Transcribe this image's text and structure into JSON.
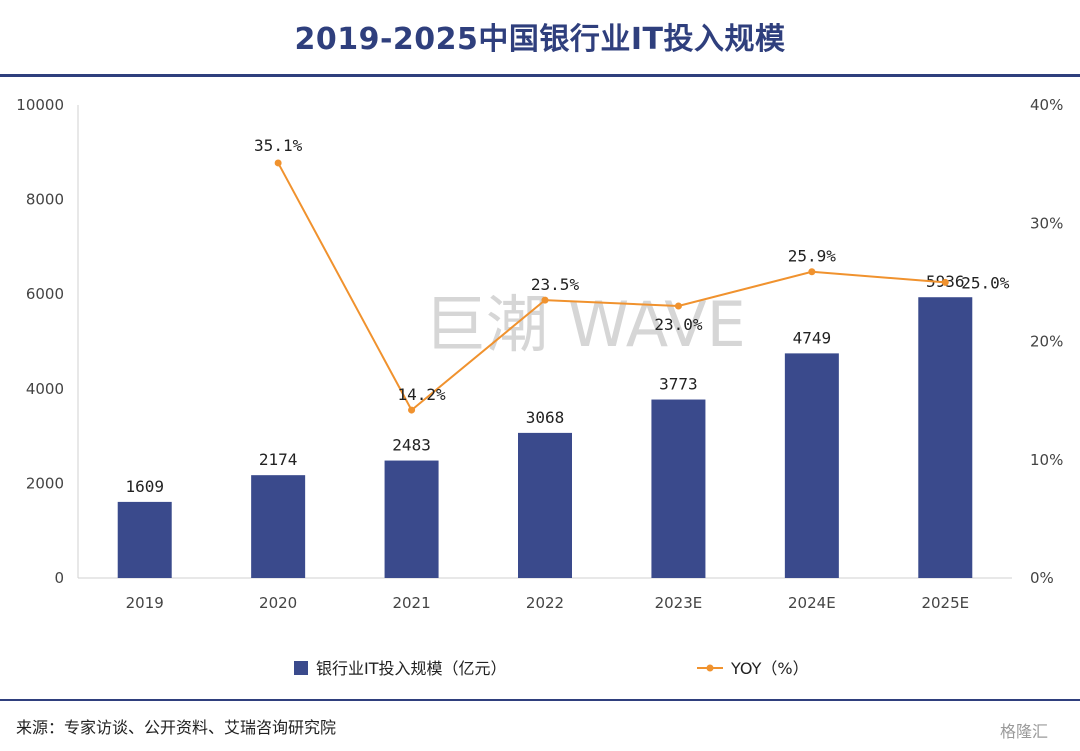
{
  "title": "2019-2025中国银行业IT投入规模",
  "source": "来源：专家访谈、公开资料、艾瑞咨询研究院",
  "watermark": "巨潮 WAVE",
  "logo_text": "格隆汇",
  "colors": {
    "bar": "#3a4a8c",
    "line": "#f0922e",
    "title": "#2f3f7d"
  },
  "chart_data": {
    "type": "bar",
    "categories": [
      "2019",
      "2020",
      "2021",
      "2022",
      "2023E",
      "2024E",
      "2025E"
    ],
    "series": [
      {
        "name": "银行业IT投入规模（亿元）",
        "type": "bar",
        "axis": "left",
        "values": [
          1609,
          2174,
          2483,
          3068,
          3773,
          4749,
          5936
        ],
        "labels": [
          "1609",
          "2174",
          "2483",
          "3068",
          "3773",
          "4749",
          "5936"
        ]
      },
      {
        "name": "YOY（%）",
        "type": "line",
        "axis": "right",
        "values": [
          null,
          35.1,
          14.2,
          23.5,
          23.0,
          25.9,
          25.0
        ],
        "labels": [
          "",
          "35.1%",
          "14.2%",
          "23.5%",
          "23.0%",
          "25.9%",
          "25.0%"
        ]
      }
    ],
    "ylim_left": [
      0,
      10000
    ],
    "yticks_left": [
      "0",
      "2000",
      "4000",
      "6000",
      "8000",
      "10000"
    ],
    "ylim_right": [
      0,
      40
    ],
    "yticks_right": [
      "0%",
      "10%",
      "20%",
      "30%",
      "40%"
    ],
    "grid": false,
    "legend_position": "bottom"
  }
}
